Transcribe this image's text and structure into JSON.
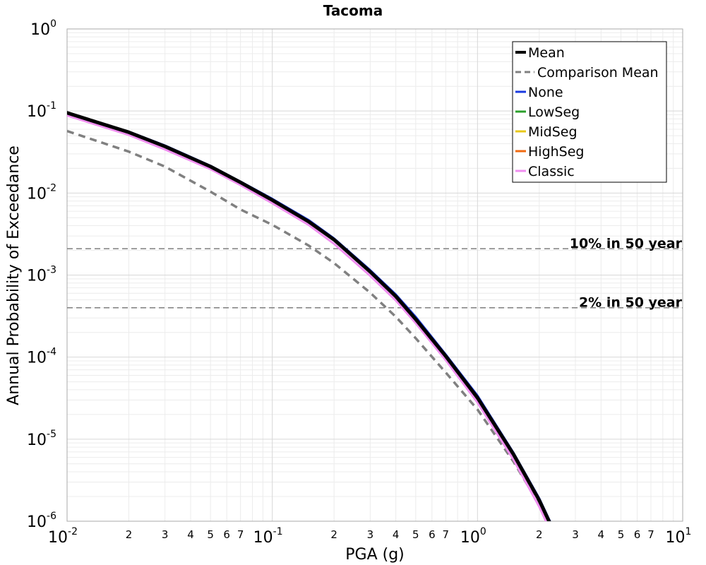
{
  "chart_data": {
    "type": "line",
    "title": "Tacoma",
    "xlabel": "PGA (g)",
    "ylabel": "Annual Probability of Exceedance",
    "xscale": "log",
    "yscale": "log",
    "xlim": [
      0.01,
      10
    ],
    "ylim": [
      1e-06,
      1
    ],
    "grid": true,
    "legend_position": "top-right",
    "x_decade_labels": [
      {
        "base": "10",
        "exp": "-2",
        "value": 0.01
      },
      {
        "base": "10",
        "exp": "-1",
        "value": 0.1
      },
      {
        "base": "10",
        "exp": "0",
        "value": 1
      },
      {
        "base": "10",
        "exp": "1",
        "value": 10
      }
    ],
    "y_decade_labels": [
      {
        "base": "10",
        "exp": "0",
        "value": 1
      },
      {
        "base": "10",
        "exp": "-1",
        "value": 0.1
      },
      {
        "base": "10",
        "exp": "-2",
        "value": 0.01
      },
      {
        "base": "10",
        "exp": "-3",
        "value": 0.001
      },
      {
        "base": "10",
        "exp": "-4",
        "value": 0.0001
      },
      {
        "base": "10",
        "exp": "-5",
        "value": 1e-05
      },
      {
        "base": "10",
        "exp": "-6",
        "value": 1e-06
      }
    ],
    "x_minor_labels": [
      "2",
      "3",
      "4",
      "5",
      "6",
      "7"
    ],
    "reference_lines": [
      {
        "label": "10% in 50 year",
        "y": 0.0021
      },
      {
        "label": "2% in 50 year",
        "y": 0.0004
      }
    ],
    "x": [
      0.01,
      0.02,
      0.03,
      0.05,
      0.07,
      0.1,
      0.15,
      0.2,
      0.3,
      0.4,
      0.5,
      0.7,
      1.0,
      1.5,
      2.0,
      2.3
    ],
    "series": [
      {
        "name": "Mean",
        "color": "#000000",
        "style": "solid",
        "width": 5,
        "values": [
          0.095,
          0.055,
          0.037,
          0.021,
          0.0135,
          0.0082,
          0.0045,
          0.0027,
          0.0011,
          0.00055,
          0.00029,
          0.000103,
          3.2e-05,
          6.5e-06,
          1.8e-06,
          8.5e-07
        ]
      },
      {
        "name": "Comparison Mean",
        "color": "#808080",
        "style": "dashed",
        "width": 3.5,
        "values": [
          0.057,
          0.032,
          0.021,
          0.0104,
          0.0063,
          0.0041,
          0.0023,
          0.0014,
          0.00061,
          0.00031,
          0.00017,
          6.5e-05,
          2.3e-05,
          5.3e-06,
          1.6e-06,
          7.5e-07
        ]
      },
      {
        "name": "None",
        "color": "#1a3ae0",
        "style": "solid",
        "width": 3,
        "values": [
          0.096,
          0.056,
          0.038,
          0.0215,
          0.0138,
          0.0085,
          0.0047,
          0.0028,
          0.00115,
          0.00058,
          0.00031,
          0.000108,
          3.4e-05,
          6.8e-06,
          1.9e-06,
          9e-07
        ]
      },
      {
        "name": "LowSeg",
        "color": "#2ca02c",
        "style": "solid",
        "width": 2,
        "values": [
          0.095,
          0.055,
          0.037,
          0.021,
          0.0135,
          0.0082,
          0.0045,
          0.0027,
          0.0011,
          0.00055,
          0.00029,
          0.000103,
          3.2e-05,
          6.5e-06,
          1.8e-06,
          8.5e-07
        ]
      },
      {
        "name": "MidSeg",
        "color": "#e8c81a",
        "style": "solid",
        "width": 2,
        "values": [
          0.095,
          0.055,
          0.037,
          0.021,
          0.0135,
          0.0082,
          0.0045,
          0.0027,
          0.0011,
          0.00055,
          0.00029,
          0.000103,
          3.2e-05,
          6.5e-06,
          1.8e-06,
          8.5e-07
        ]
      },
      {
        "name": "HighSeg",
        "color": "#f06a10",
        "style": "solid",
        "width": 2,
        "values": [
          0.095,
          0.055,
          0.037,
          0.021,
          0.0135,
          0.0082,
          0.0045,
          0.0027,
          0.0011,
          0.00055,
          0.00029,
          0.000103,
          3.2e-05,
          6.5e-06,
          1.8e-06,
          8.5e-07
        ]
      },
      {
        "name": "Classic",
        "color": "#f08ef0",
        "style": "solid",
        "width": 3,
        "values": [
          0.088,
          0.051,
          0.034,
          0.0195,
          0.0125,
          0.0075,
          0.0041,
          0.0024,
          0.00098,
          0.00049,
          0.00026,
          9.2e-05,
          2.8e-05,
          5.6e-06,
          1.5e-06,
          7e-07
        ]
      }
    ]
  }
}
